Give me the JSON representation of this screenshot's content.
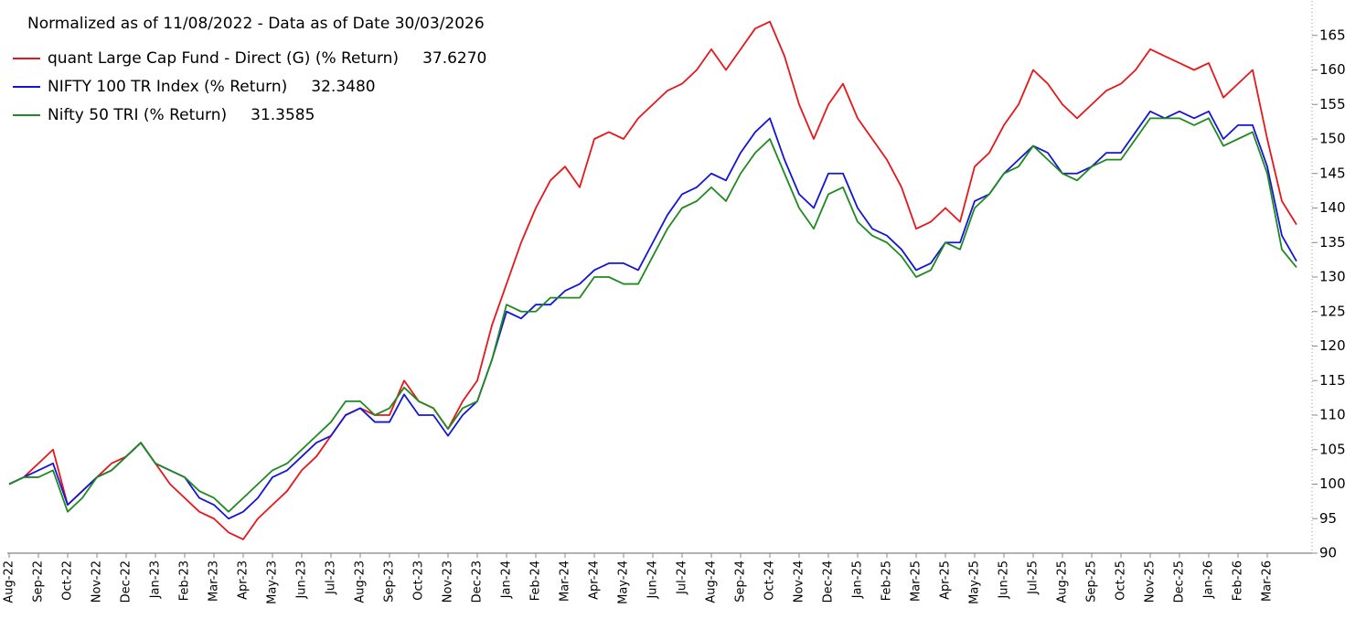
{
  "chart_data": {
    "type": "line",
    "title": "Normalized as of 11/08/2022 - Data as of Date 30/03/2026",
    "categories": [
      "Aug-22",
      null,
      "Sep-22",
      null,
      "Oct-22",
      null,
      "Nov-22",
      null,
      "Dec-22",
      null,
      "Jan-23",
      null,
      "Feb-23",
      null,
      "Mar-23",
      null,
      "Apr-23",
      null,
      "May-23",
      null,
      "Jun-23",
      null,
      "Jul-23",
      null,
      "Aug-23",
      null,
      "Sep-23",
      null,
      "Oct-23",
      null,
      "Nov-23",
      null,
      "Dec-23",
      null,
      "Jan-24",
      null,
      "Feb-24",
      null,
      "Mar-24",
      null,
      "Apr-24",
      null,
      "May-24",
      null,
      "Jun-24",
      null,
      "Jul-24",
      null,
      "Aug-24",
      null,
      "Sep-24",
      null,
      "Oct-24",
      null,
      "Nov-24",
      null,
      "Dec-24",
      null,
      "Jan-25",
      null,
      "Feb-25",
      null,
      "Mar-25",
      null,
      "Apr-25",
      null,
      "May-25",
      null,
      "Jun-25",
      null,
      "Jul-25",
      null,
      "Aug-25",
      null,
      "Sep-25",
      null,
      "Oct-25",
      null,
      "Nov-25",
      null,
      "Dec-25",
      null,
      "Jan-26",
      null,
      "Feb-26",
      null,
      "Mar-26",
      null,
      null
    ],
    "series": [
      {
        "name": "quant Large Cap Fund - Direct (G) (% Return)",
        "return": "37.6270",
        "color": "#e8161b",
        "values": [
          100,
          101,
          103,
          105,
          97,
          99,
          101,
          103,
          104,
          106,
          103,
          100,
          98,
          96,
          95,
          93,
          92,
          95,
          97,
          99,
          102,
          104,
          107,
          110,
          111,
          110,
          110,
          115,
          112,
          111,
          108,
          112,
          115,
          123,
          129,
          135,
          140,
          144,
          146,
          143,
          150,
          151,
          150,
          153,
          155,
          157,
          158,
          160,
          163,
          160,
          163,
          166,
          167,
          162,
          155,
          150,
          155,
          158,
          153,
          150,
          147,
          143,
          137,
          138,
          140,
          138,
          146,
          148,
          152,
          155,
          160,
          158,
          155,
          153,
          155,
          157,
          158,
          160,
          163,
          162,
          161,
          160,
          161,
          156,
          158,
          160,
          150,
          141,
          137.6
        ]
      },
      {
        "name": "NIFTY 100 TR Index (% Return)",
        "return": "32.3480",
        "color": "#1515d8",
        "values": [
          100,
          101,
          102,
          103,
          97,
          99,
          101,
          102,
          104,
          106,
          103,
          102,
          101,
          98,
          97,
          95,
          96,
          98,
          101,
          102,
          104,
          106,
          107,
          110,
          111,
          109,
          109,
          113,
          110,
          110,
          107,
          110,
          112,
          118,
          125,
          124,
          126,
          126,
          128,
          129,
          131,
          132,
          132,
          131,
          135,
          139,
          142,
          143,
          145,
          144,
          148,
          151,
          153,
          147,
          142,
          140,
          145,
          145,
          140,
          137,
          136,
          134,
          131,
          132,
          135,
          135,
          141,
          142,
          145,
          147,
          149,
          148,
          145,
          145,
          146,
          148,
          148,
          151,
          154,
          153,
          154,
          153,
          154,
          150,
          152,
          152,
          146,
          136,
          132.3
        ]
      },
      {
        "name": "Nifty 50 TRI (% Return)",
        "return": "31.3585",
        "color": "#1f8a1f",
        "values": [
          100,
          101,
          101,
          102,
          96,
          98,
          101,
          102,
          104,
          106,
          103,
          102,
          101,
          99,
          98,
          96,
          98,
          100,
          102,
          103,
          105,
          107,
          109,
          112,
          112,
          110,
          111,
          114,
          112,
          111,
          108,
          111,
          112,
          118,
          126,
          125,
          125,
          127,
          127,
          127,
          130,
          130,
          129,
          129,
          133,
          137,
          140,
          141,
          143,
          141,
          145,
          148,
          150,
          145,
          140,
          137,
          142,
          143,
          138,
          136,
          135,
          133,
          130,
          131,
          135,
          134,
          140,
          142,
          145,
          146,
          149,
          147,
          145,
          144,
          146,
          147,
          147,
          150,
          153,
          153,
          153,
          152,
          153,
          149,
          150,
          151,
          145,
          134,
          131.4
        ]
      }
    ],
    "ylim": [
      90,
      170
    ],
    "yticks": [
      90,
      95,
      100,
      105,
      110,
      115,
      120,
      125,
      130,
      135,
      140,
      145,
      150,
      155,
      160,
      165
    ]
  }
}
